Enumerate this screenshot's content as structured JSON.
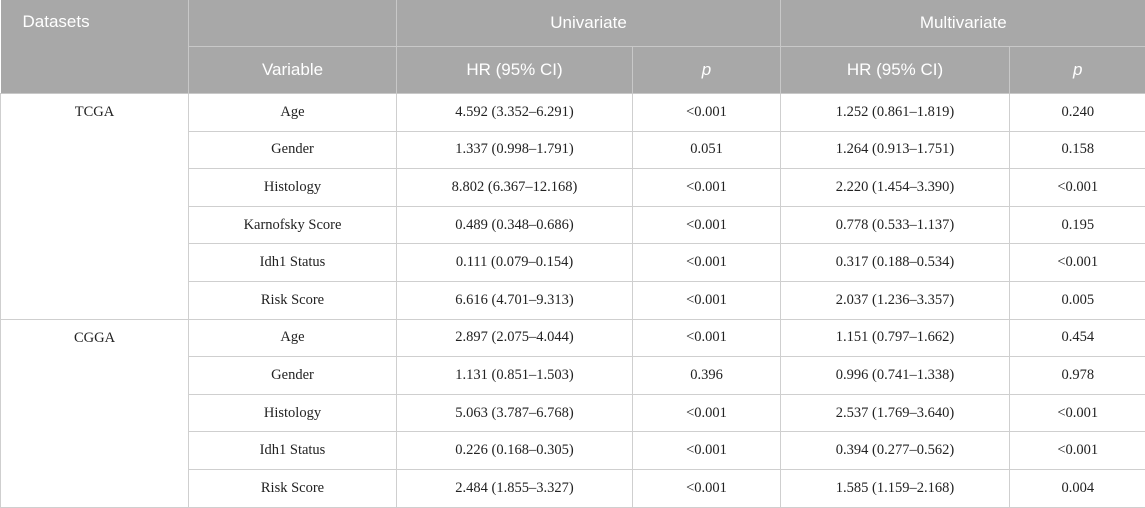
{
  "header": {
    "datasets": "Datasets",
    "univariate": "Univariate",
    "multivariate": "Multivariate",
    "variable": "Variable",
    "hr_uni": "HR (95% CI)",
    "p_uni": "p",
    "hr_multi": "HR (95% CI)",
    "p_multi": "p"
  },
  "groups": [
    {
      "dataset": "TCGA",
      "rows": [
        {
          "variable": "Age",
          "hr_uni": "4.592 (3.352–6.291)",
          "p_uni": "<0.001",
          "hr_multi": "1.252 (0.861–1.819)",
          "p_multi": "0.240"
        },
        {
          "variable": "Gender",
          "hr_uni": "1.337 (0.998–1.791)",
          "p_uni": "0.051",
          "hr_multi": "1.264 (0.913–1.751)",
          "p_multi": "0.158"
        },
        {
          "variable": "Histology",
          "hr_uni": "8.802 (6.367–12.168)",
          "p_uni": "<0.001",
          "hr_multi": "2.220 (1.454–3.390)",
          "p_multi": "<0.001"
        },
        {
          "variable": "Karnofsky Score",
          "hr_uni": "0.489 (0.348–0.686)",
          "p_uni": "<0.001",
          "hr_multi": "0.778 (0.533–1.137)",
          "p_multi": "0.195"
        },
        {
          "variable": "Idh1 Status",
          "hr_uni": "0.111 (0.079–0.154)",
          "p_uni": "<0.001",
          "hr_multi": "0.317 (0.188–0.534)",
          "p_multi": "<0.001"
        },
        {
          "variable": "Risk Score",
          "hr_uni": "6.616 (4.701–9.313)",
          "p_uni": "<0.001",
          "hr_multi": "2.037 (1.236–3.357)",
          "p_multi": "0.005"
        }
      ]
    },
    {
      "dataset": "CGGA",
      "rows": [
        {
          "variable": "Age",
          "hr_uni": "2.897 (2.075–4.044)",
          "p_uni": "<0.001",
          "hr_multi": "1.151 (0.797–1.662)",
          "p_multi": "0.454"
        },
        {
          "variable": "Gender",
          "hr_uni": "1.131 (0.851–1.503)",
          "p_uni": "0.396",
          "hr_multi": "0.996 (0.741–1.338)",
          "p_multi": "0.978"
        },
        {
          "variable": "Histology",
          "hr_uni": "5.063 (3.787–6.768)",
          "p_uni": "<0.001",
          "hr_multi": "2.537 (1.769–3.640)",
          "p_multi": "<0.001"
        },
        {
          "variable": "Idh1 Status",
          "hr_uni": "0.226 (0.168–0.305)",
          "p_uni": "<0.001",
          "hr_multi": "0.394 (0.277–0.562)",
          "p_multi": "<0.001"
        },
        {
          "variable": "Risk Score",
          "hr_uni": "2.484 (1.855–3.327)",
          "p_uni": "<0.001",
          "hr_multi": "1.585 (1.159–2.168)",
          "p_multi": "0.004"
        }
      ]
    }
  ]
}
